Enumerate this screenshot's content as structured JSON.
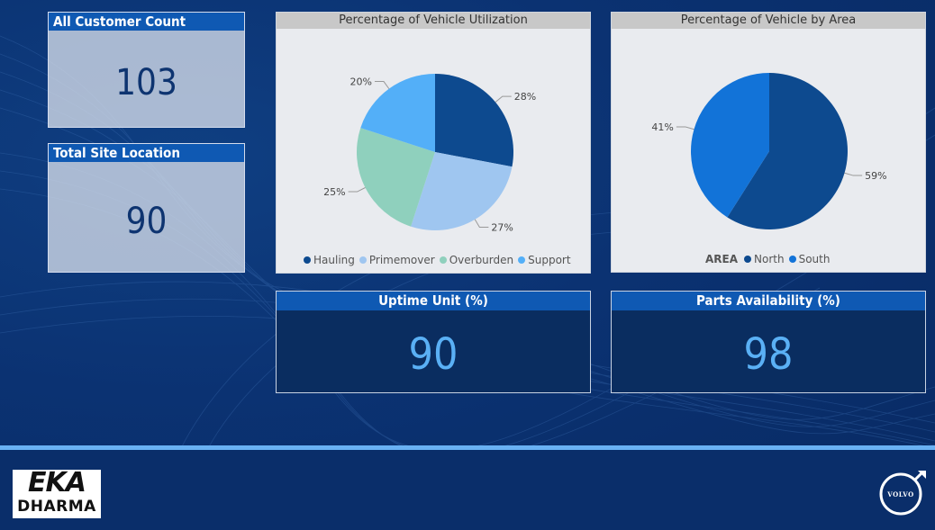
{
  "kpis": {
    "customer_count": {
      "title": "All Customer Count",
      "value": "103"
    },
    "site_location": {
      "title": "Total Site Location",
      "value": "90"
    },
    "uptime": {
      "title": "Uptime Unit (%)",
      "value": "90"
    },
    "parts": {
      "title": "Parts Availability (%)",
      "value": "98"
    }
  },
  "colors": {
    "hauling": "#0d4a8f",
    "primemover": "#9fc6f0",
    "overburden": "#8fd0bd",
    "support": "#53aff8",
    "north": "#0d4a8f",
    "south": "#1273d8"
  },
  "chart_data": [
    {
      "type": "pie",
      "title": "Percentage of Vehicle Utilization",
      "categories": [
        "Hauling",
        "Primemover",
        "Overburden",
        "Support"
      ],
      "values": [
        28,
        27,
        25,
        20
      ],
      "data_labels": [
        "28%",
        "27%",
        "25%",
        "20%"
      ],
      "legend_position": "bottom"
    },
    {
      "type": "pie",
      "title": "Percentage of Vehicle by Area",
      "legend_title": "AREA",
      "categories": [
        "North",
        "South"
      ],
      "values": [
        59,
        41
      ],
      "data_labels": [
        "59%",
        "41%"
      ],
      "legend_position": "bottom"
    }
  ],
  "logos": {
    "eka_top": "EKA",
    "eka_bottom": "DHARMA",
    "volvo": "VOLVO"
  }
}
